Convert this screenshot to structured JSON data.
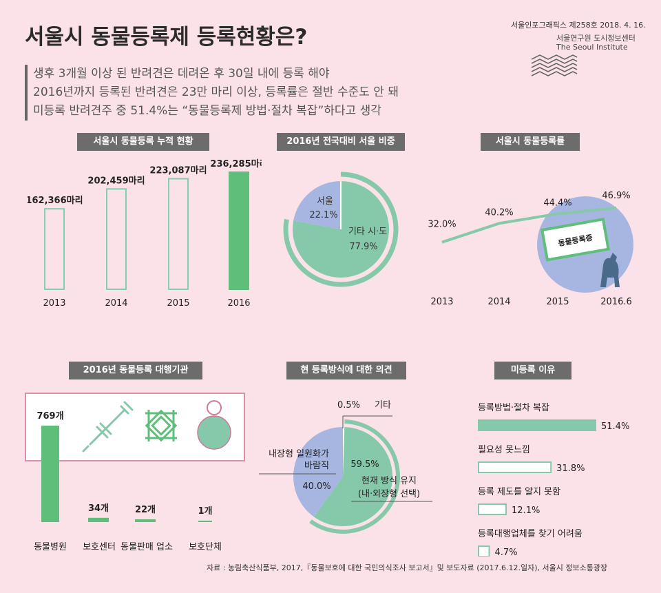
{
  "header": {
    "title": "서울시 동물등록제 등록현황은?",
    "issue": "서울인포그래픽스 제258호 2018. 4. 16.",
    "institute_ko": "서울연구원 도시정보센터",
    "institute_en": "The Seoul Institute"
  },
  "subtitles": [
    "생후 3개월 이상 된 반려견은 데려온 후 30일 내에 등록 해야",
    "2016년까지 등록된 반려견은 23만 마리 이상, 등록률은 절반 수준도 안 돼",
    "미등록 반려견주 중 51.4%는 “동물등록제 방법·절차 복잡”하다고 생각"
  ],
  "colors": {
    "accent": "#5fbf7a",
    "teal": "#86c8aa",
    "lavender": "#a7b6e0",
    "outline": "#7fcfb1",
    "background": "#fbe2e8"
  },
  "chart_data": [
    {
      "type": "bar",
      "title": "서울시 동물등록 누적 현황",
      "categories": [
        "2013",
        "2014",
        "2015",
        "2016"
      ],
      "values": [
        162366,
        202459,
        223087,
        236285
      ],
      "value_labels": [
        "162,366마리",
        "202,459마리",
        "223,087마리",
        "236,285마리"
      ]
    },
    {
      "type": "pie",
      "title": "2016년 전국대비 서울 비중",
      "slices": [
        {
          "name": "서울",
          "value": 22.1,
          "label": "22.1%"
        },
        {
          "name": "기타 시·도",
          "value": 77.9,
          "label": "77.9%"
        }
      ]
    },
    {
      "type": "line",
      "title": "서울시 동물등록률",
      "categories": [
        "2013",
        "2014",
        "2015",
        "2016.6"
      ],
      "values": [
        32.0,
        40.2,
        44.4,
        46.9
      ],
      "value_labels": [
        "32.0%",
        "40.2%",
        "44.4%",
        "46.9%"
      ],
      "badge": "동물등록증"
    },
    {
      "type": "bar",
      "title": "2016년 동물등록 대행기관",
      "categories": [
        "동물병원",
        "보호센터",
        "동물판매 업소",
        "보호단체"
      ],
      "values": [
        769,
        34,
        22,
        1
      ],
      "value_labels": [
        "769개",
        "34개",
        "22개",
        "1개"
      ]
    },
    {
      "type": "pie",
      "title": "현 등록방식에 대한 의견",
      "slices": [
        {
          "name": "기타",
          "value": 0.5,
          "label": "0.5%"
        },
        {
          "name": "현재 방식 유지 (내·외장형 선택)",
          "line1": "현재 방식 유지",
          "line2": "(내·외장형 선택)",
          "value": 59.5,
          "label": "59.5%"
        },
        {
          "name": "내장형 일원화가 바람직",
          "line1": "내장형 일원화가",
          "line2": "바람직",
          "value": 40.0,
          "label": "40.0%"
        }
      ]
    },
    {
      "type": "bar",
      "orientation": "horizontal",
      "title": "미등록 이유",
      "categories": [
        "등록방법·절차 복잡",
        "필요성 못느낌",
        "등록 제도를 알지 못함",
        "등록대행업체를 찾기 어려움"
      ],
      "values": [
        51.4,
        31.8,
        12.1,
        4.7
      ],
      "value_labels": [
        "51.4%",
        "31.8%",
        "12.1%",
        "4.7%"
      ]
    }
  ],
  "footer": "자료 : 농림축산식품부, 2017,『동물보호에 대한 국민의식조사 보고서』및 보도자료 (2017.6.12.일자), 서울시 정보소통광장"
}
